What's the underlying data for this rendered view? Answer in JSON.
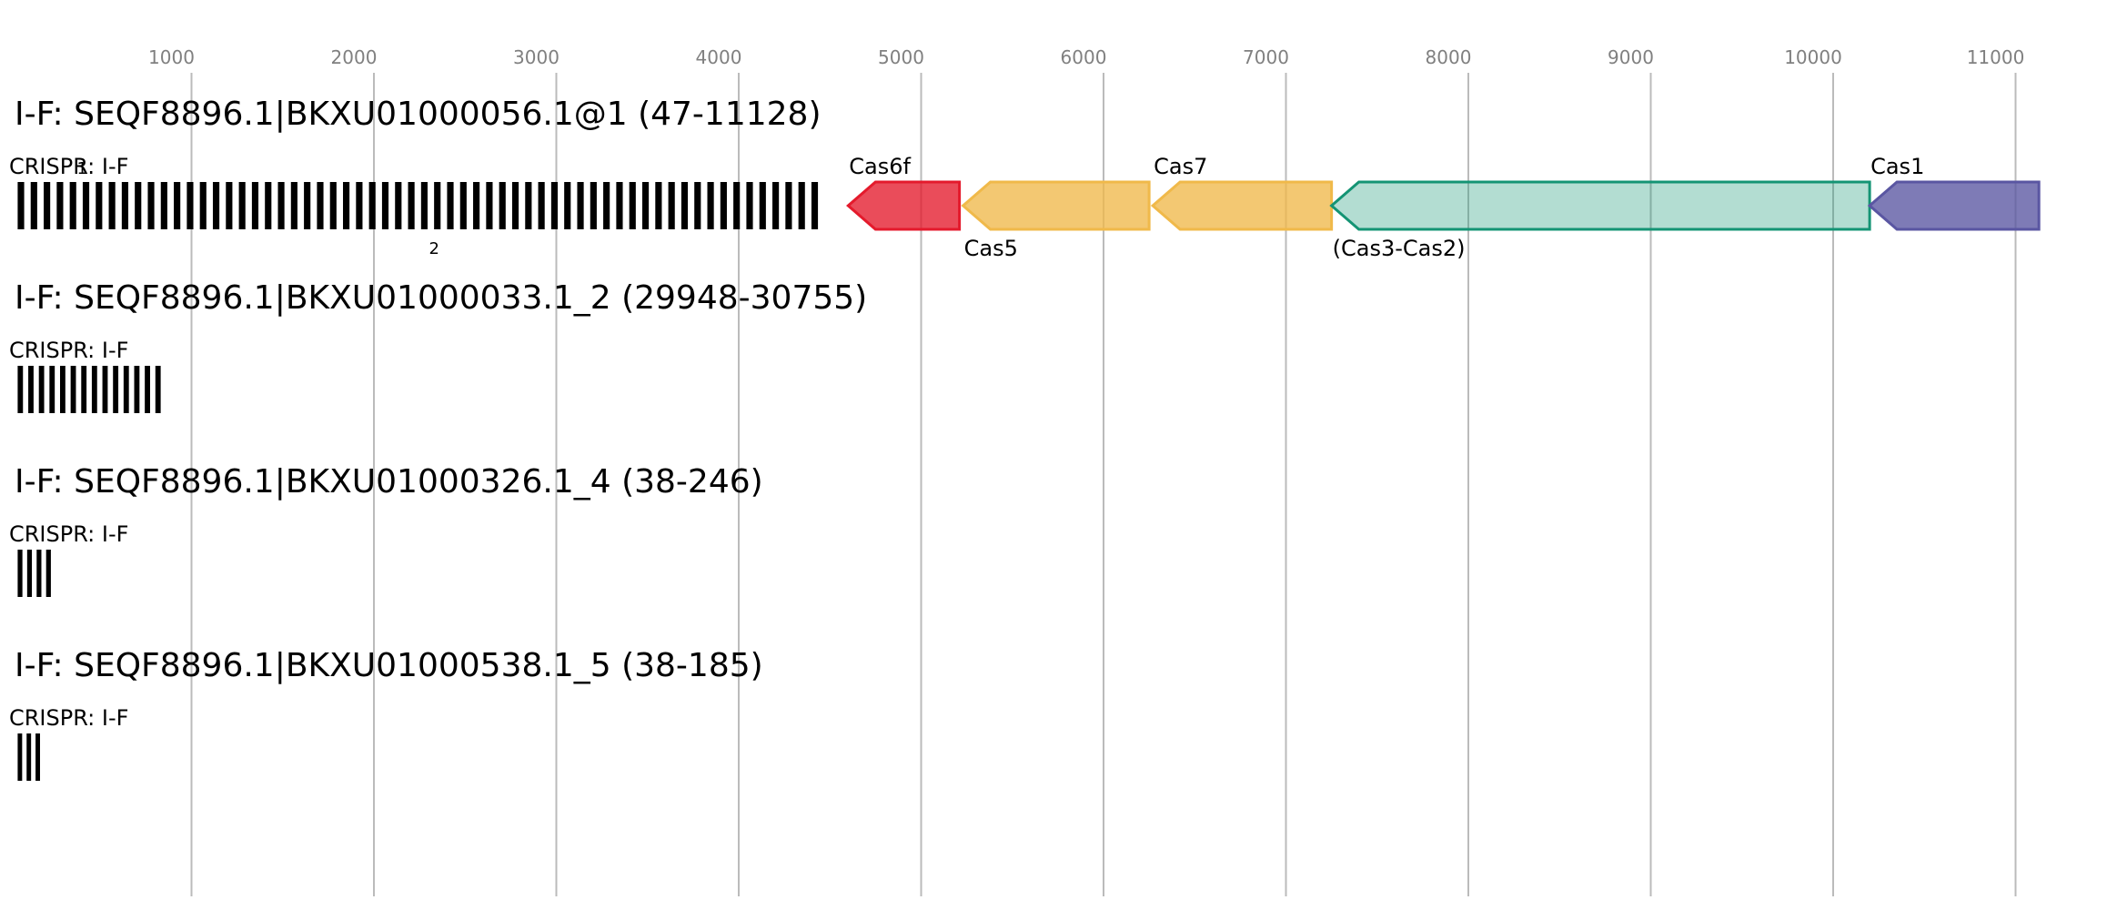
{
  "axis": {
    "ticks": [
      1000,
      2000,
      3000,
      4000,
      5000,
      6000,
      7000,
      8000,
      9000,
      10000,
      11000
    ]
  },
  "loci": [
    {
      "title": "I-F: SEQF8896.1|BKXU01000056.1@1 (47-11128)",
      "arrays": [
        {
          "label": "CRISPR: I-F",
          "start": 47,
          "end": 4470,
          "repeats": 62
        }
      ],
      "markers": [
        {
          "text": "1",
          "pos": 400,
          "place": "above"
        },
        {
          "text": "2",
          "pos": 2330,
          "place": "below"
        }
      ],
      "genes": [
        {
          "name": "Cas6f",
          "start": 4600,
          "end": 5210,
          "strand": "-",
          "color": "#e41a2c",
          "label_pos": "above"
        },
        {
          "name": "Cas5",
          "start": 5230,
          "end": 6250,
          "strand": "-",
          "color": "#f0b94a",
          "label_pos": "below"
        },
        {
          "name": "Cas7",
          "start": 6270,
          "end": 7250,
          "strand": "-",
          "color": "#f0b94a",
          "label_pos": "above"
        },
        {
          "name": "(Cas3-Cas2)",
          "start": 7250,
          "end": 10200,
          "strand": "-",
          "color": "#149474",
          "label_pos": "below"
        },
        {
          "name": "Cas1",
          "start": 10200,
          "end": 11128,
          "strand": "-",
          "color": "#5a56a2",
          "label_pos": "above"
        }
      ]
    },
    {
      "title": "I-F: SEQF8896.1|BKXU01000033.1_2 (29948-30755)",
      "arrays": [
        {
          "label": "CRISPR: I-F",
          "start": 47,
          "end": 860,
          "repeats": 14
        }
      ],
      "markers": [],
      "genes": []
    },
    {
      "title": "I-F: SEQF8896.1|BKXU01000326.1_4 (38-246)",
      "arrays": [
        {
          "label": "CRISPR: I-F",
          "start": 47,
          "end": 255,
          "repeats": 4
        }
      ],
      "markers": [],
      "genes": []
    },
    {
      "title": "I-F: SEQF8896.1|BKXU01000538.1_5 (38-185)",
      "arrays": [
        {
          "label": "CRISPR: I-F",
          "start": 47,
          "end": 194,
          "repeats": 3
        }
      ],
      "markers": [],
      "genes": []
    }
  ]
}
